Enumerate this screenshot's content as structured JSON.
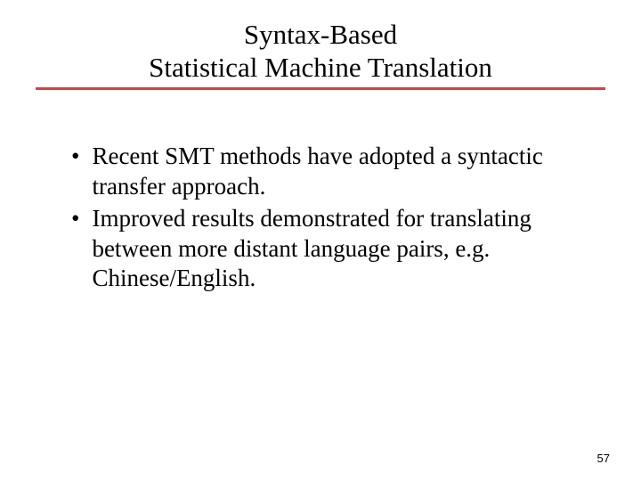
{
  "slide": {
    "title_line1": "Syntax-Based",
    "title_line2": "Statistical Machine Translation",
    "underline_color": "#d94040",
    "bullets": [
      {
        "text": "Recent SMT methods have adopted a syntactic transfer approach."
      },
      {
        "text": "Improved results demonstrated for translating between more distant language pairs, e.g. Chinese/English."
      }
    ],
    "page_number": "57",
    "background_color": "#ffffff",
    "text_color": "#000000",
    "title_fontsize": 31,
    "body_fontsize": 27,
    "pagenum_fontsize": 13
  }
}
